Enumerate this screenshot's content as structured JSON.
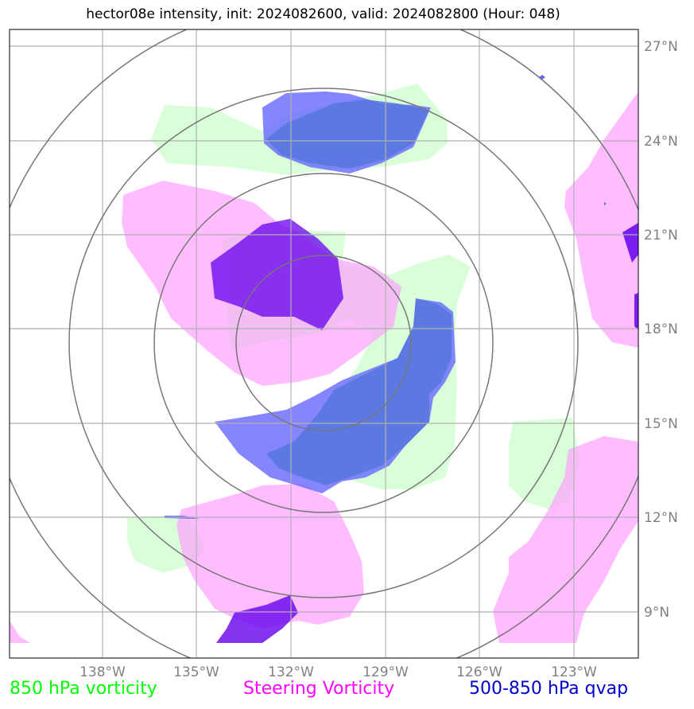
{
  "title": "hector08e intensity, init: 2024082600, valid: 2024082800 (Hour: 048)",
  "lat_labels": [
    "27°N",
    "24°N",
    "21°N",
    "18°N",
    "15°N",
    "12°N",
    "9°N"
  ],
  "lon_labels": [
    "138°W",
    "135°W",
    "132°W",
    "129°W",
    "126°W",
    "123°W"
  ],
  "legend": {
    "vort850": "850 hPa vorticity",
    "steering": "Steering Vorticity",
    "qvap": "500-850 hPa qvap"
  },
  "colors": {
    "vort850": "#00ff00",
    "steering": "#ff00ff",
    "qvap": "#0000cc"
  }
}
